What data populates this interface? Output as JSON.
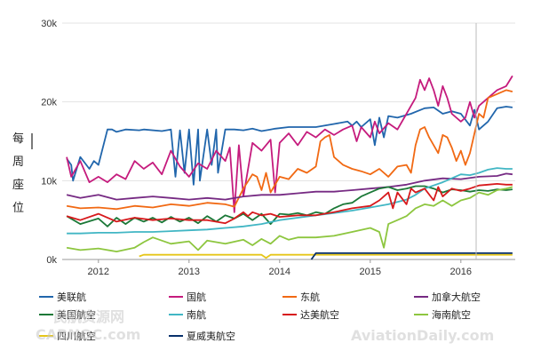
{
  "chart_data": {
    "type": "line",
    "ylabel": "每周座位",
    "yticks": [
      "0k",
      "10k",
      "20k",
      "30k"
    ],
    "ylim": [
      0,
      30000
    ],
    "xticks": [
      "2012",
      "2013",
      "2014",
      "2015",
      "2016"
    ],
    "xlim": [
      2011.6,
      2016.6
    ],
    "grid": "horizontal",
    "legend_position": "bottom",
    "series": [
      {
        "name": "美联航",
        "color": "#2166ac",
        "x": [
          2011.65,
          2011.7,
          2011.72,
          2011.8,
          2011.9,
          2011.95,
          2012.0,
          2012.1,
          2012.15,
          2012.2,
          2012.3,
          2012.45,
          2012.5,
          2012.7,
          2012.8,
          2012.85,
          2012.9,
          2012.95,
          2013.0,
          2013.05,
          2013.1,
          2013.12,
          2013.2,
          2013.25,
          2013.3,
          2013.32,
          2013.4,
          2013.5,
          2013.6,
          2013.7,
          2013.8,
          2013.9,
          2013.95,
          2014.1,
          2014.2,
          2014.4,
          2014.6,
          2014.75,
          2014.8,
          2014.85,
          2014.9,
          2015.0,
          2015.05,
          2015.1,
          2015.15,
          2015.2,
          2015.3,
          2015.45,
          2015.6,
          2015.7,
          2015.8,
          2015.9,
          2016.0,
          2016.1,
          2016.15,
          2016.2,
          2016.3,
          2016.4,
          2016.5,
          2016.57
        ],
        "values": [
          12800,
          12000,
          10000,
          13000,
          11500,
          12500,
          12000,
          16500,
          16500,
          16200,
          16500,
          16400,
          16500,
          16300,
          16500,
          10500,
          16400,
          11000,
          16500,
          9500,
          16500,
          10000,
          16500,
          12000,
          16500,
          11000,
          16500,
          16500,
          16400,
          16600,
          16300,
          16500,
          16600,
          16800,
          16800,
          16800,
          17200,
          17500,
          17000,
          17500,
          16800,
          17800,
          14500,
          18000,
          15500,
          18200,
          18000,
          18500,
          19200,
          19300,
          18500,
          18800,
          18500,
          17000,
          19000,
          16500,
          17500,
          19200,
          19400,
          19300
        ]
      },
      {
        "name": "国航",
        "color": "#c51b7d",
        "x": [
          2011.65,
          2011.7,
          2011.8,
          2011.9,
          2012.0,
          2012.1,
          2012.2,
          2012.3,
          2012.4,
          2012.5,
          2012.6,
          2012.7,
          2012.8,
          2012.9,
          2013.0,
          2013.1,
          2013.2,
          2013.3,
          2013.4,
          2013.45,
          2013.5,
          2013.55,
          2013.6,
          2013.7,
          2013.8,
          2013.9,
          2013.95,
          2014.0,
          2014.1,
          2014.2,
          2014.3,
          2014.4,
          2014.5,
          2014.6,
          2014.7,
          2014.8,
          2014.85,
          2014.9,
          2015.0,
          2015.05,
          2015.1,
          2015.2,
          2015.3,
          2015.4,
          2015.5,
          2015.55,
          2015.6,
          2015.65,
          2015.7,
          2015.75,
          2015.8,
          2015.85,
          2015.9,
          2016.0,
          2016.05,
          2016.1,
          2016.15,
          2016.2,
          2016.3,
          2016.4,
          2016.5,
          2016.57
        ],
        "values": [
          13000,
          10500,
          12500,
          9800,
          10500,
          9800,
          10800,
          10200,
          12500,
          11500,
          12300,
          10800,
          13800,
          11800,
          10500,
          12200,
          11500,
          13800,
          12500,
          14200,
          6000,
          14500,
          8000,
          14800,
          13800,
          15200,
          8500,
          14800,
          16000,
          14500,
          16200,
          15500,
          16500,
          15800,
          16500,
          17000,
          15000,
          16800,
          15500,
          17500,
          16000,
          17300,
          16500,
          18500,
          20500,
          22800,
          21500,
          23000,
          21500,
          19500,
          22000,
          20500,
          18500,
          17500,
          18000,
          20000,
          18000,
          19500,
          20500,
          21500,
          22000,
          23300
        ]
      },
      {
        "name": "东航",
        "color": "#f16913",
        "x": [
          2011.65,
          2011.8,
          2012.0,
          2012.2,
          2012.4,
          2012.6,
          2012.8,
          2013.0,
          2013.2,
          2013.4,
          2013.5,
          2013.6,
          2013.7,
          2013.75,
          2013.8,
          2013.85,
          2013.9,
          2014.0,
          2014.1,
          2014.2,
          2014.3,
          2014.4,
          2014.45,
          2014.5,
          2014.55,
          2014.6,
          2014.7,
          2014.8,
          2014.9,
          2015.0,
          2015.1,
          2015.2,
          2015.3,
          2015.4,
          2015.45,
          2015.5,
          2015.55,
          2015.6,
          2015.65,
          2015.7,
          2015.75,
          2015.8,
          2015.85,
          2015.9,
          2015.95,
          2016.0,
          2016.05,
          2016.1,
          2016.2,
          2016.25,
          2016.3,
          2016.4,
          2016.5,
          2016.57
        ],
        "values": [
          6800,
          6500,
          6600,
          6400,
          6800,
          6600,
          7000,
          6800,
          7200,
          7000,
          6700,
          9000,
          10800,
          10500,
          8800,
          11000,
          8500,
          10500,
          10200,
          11500,
          11000,
          11800,
          15000,
          15500,
          15800,
          13000,
          12000,
          11500,
          11200,
          10800,
          11500,
          10500,
          11800,
          12000,
          11000,
          14500,
          16500,
          16800,
          15500,
          14500,
          13500,
          15800,
          15500,
          14200,
          12500,
          13800,
          12000,
          13500,
          18500,
          18000,
          20500,
          21000,
          21500,
          21300
        ]
      },
      {
        "name": "加拿大航空",
        "color": "#762a83",
        "x": [
          2011.65,
          2011.8,
          2012.0,
          2012.2,
          2012.4,
          2012.6,
          2012.8,
          2013.0,
          2013.2,
          2013.4,
          2013.6,
          2013.8,
          2014.0,
          2014.2,
          2014.4,
          2014.6,
          2014.8,
          2015.0,
          2015.2,
          2015.4,
          2015.6,
          2015.8,
          2016.0,
          2016.2,
          2016.4,
          2016.5,
          2016.57
        ],
        "values": [
          8200,
          7800,
          8200,
          7600,
          7800,
          8000,
          7800,
          7600,
          7800,
          7600,
          8000,
          8200,
          8200,
          8400,
          8600,
          8600,
          8800,
          9000,
          9200,
          9500,
          10000,
          10300,
          10200,
          10500,
          10600,
          10900,
          10800
        ]
      },
      {
        "name": "美国航空",
        "color": "#1b7837",
        "x": [
          2011.65,
          2011.8,
          2012.0,
          2012.1,
          2012.2,
          2012.3,
          2012.4,
          2012.5,
          2012.6,
          2012.7,
          2012.8,
          2012.9,
          2013.0,
          2013.1,
          2013.2,
          2013.3,
          2013.4,
          2013.5,
          2013.6,
          2013.7,
          2013.8,
          2013.9,
          2014.0,
          2014.1,
          2014.2,
          2014.3,
          2014.4,
          2014.5,
          2014.6,
          2014.7,
          2014.8,
          2014.9,
          2015.0,
          2015.1,
          2015.2,
          2015.3,
          2015.4,
          2015.5,
          2015.6,
          2015.7,
          2015.8,
          2015.9,
          2016.0,
          2016.1,
          2016.2,
          2016.3,
          2016.4,
          2016.5,
          2016.57
        ],
        "values": [
          5500,
          4500,
          5200,
          4200,
          5300,
          4500,
          5300,
          4800,
          5300,
          4700,
          5400,
          4800,
          5300,
          4600,
          5500,
          4800,
          5600,
          5200,
          5800,
          5000,
          5800,
          4500,
          5800,
          5700,
          5900,
          5600,
          6000,
          5800,
          6500,
          7000,
          7200,
          8000,
          8500,
          9000,
          9200,
          8800,
          9000,
          9300,
          9300,
          9000,
          8500,
          8900,
          8800,
          8600,
          8800,
          8700,
          8900,
          8800,
          8900
        ]
      },
      {
        "name": "南航",
        "color": "#41b6c4",
        "x": [
          2011.65,
          2011.8,
          2012.0,
          2012.2,
          2012.4,
          2012.6,
          2012.8,
          2013.0,
          2013.2,
          2013.4,
          2013.6,
          2013.8,
          2014.0,
          2014.2,
          2014.4,
          2014.6,
          2014.8,
          2015.0,
          2015.2,
          2015.4,
          2015.5,
          2015.6,
          2015.8,
          2016.0,
          2016.1,
          2016.2,
          2016.3,
          2016.4,
          2016.5,
          2016.57
        ],
        "values": [
          3300,
          3300,
          3400,
          3400,
          3500,
          3500,
          3600,
          3700,
          3800,
          4000,
          4200,
          4500,
          5000,
          5300,
          5600,
          5900,
          6200,
          6600,
          7000,
          7600,
          8200,
          9000,
          9800,
          10800,
          10700,
          11000,
          11400,
          11600,
          11500,
          11500
        ]
      },
      {
        "name": "达美航空",
        "color": "#d7191c",
        "x": [
          2011.65,
          2011.8,
          2012.0,
          2012.2,
          2012.4,
          2012.6,
          2012.8,
          2013.0,
          2013.2,
          2013.4,
          2013.5,
          2013.6,
          2013.65,
          2013.7,
          2013.8,
          2013.9,
          2014.0,
          2014.2,
          2014.4,
          2014.6,
          2014.8,
          2015.0,
          2015.1,
          2015.2,
          2015.25,
          2015.3,
          2015.4,
          2015.45,
          2015.5,
          2015.6,
          2015.7,
          2015.75,
          2015.8,
          2015.9,
          2016.0,
          2016.1,
          2016.2,
          2016.3,
          2016.4,
          2016.5,
          2016.57
        ],
        "values": [
          5500,
          5000,
          5800,
          4800,
          5300,
          5000,
          5200,
          5000,
          5000,
          4600,
          5200,
          6000,
          5500,
          6000,
          5600,
          5800,
          5400,
          5600,
          5600,
          6000,
          6500,
          6800,
          7500,
          8500,
          6500,
          8500,
          7000,
          9000,
          8500,
          9000,
          7500,
          9200,
          8000,
          9000,
          8700,
          9000,
          9400,
          9500,
          9600,
          9500,
          9500
        ]
      },
      {
        "name": "海南航空",
        "color": "#8dc63f",
        "x": [
          2011.65,
          2011.8,
          2012.0,
          2012.2,
          2012.4,
          2012.5,
          2012.6,
          2012.8,
          2013.0,
          2013.1,
          2013.2,
          2013.4,
          2013.6,
          2013.7,
          2013.8,
          2013.9,
          2014.0,
          2014.1,
          2014.2,
          2014.4,
          2014.6,
          2014.8,
          2015.0,
          2015.1,
          2015.15,
          2015.2,
          2015.3,
          2015.4,
          2015.5,
          2015.6,
          2015.7,
          2015.8,
          2015.9,
          2016.0,
          2016.1,
          2016.2,
          2016.3,
          2016.4,
          2016.5,
          2016.57
        ],
        "values": [
          1500,
          1200,
          1400,
          1000,
          1500,
          2200,
          2800,
          2000,
          2300,
          1200,
          2400,
          2000,
          2500,
          1800,
          2600,
          2000,
          3000,
          2500,
          2800,
          2800,
          3000,
          3500,
          4000,
          3500,
          1500,
          4500,
          5000,
          5500,
          6500,
          7000,
          6800,
          7500,
          6800,
          7500,
          7800,
          8500,
          8200,
          8800,
          9000,
          9200
        ]
      },
      {
        "name": "四川航空",
        "color": "#e6c619",
        "x": [
          2012.45,
          2012.5,
          2012.6,
          2012.8,
          2013.0,
          2013.2,
          2013.4,
          2013.6,
          2013.8,
          2013.85,
          2013.9,
          2014.0,
          2014.2,
          2014.4,
          2014.6,
          2014.8,
          2015.0,
          2015.2,
          2015.4,
          2015.6,
          2015.8,
          2016.0,
          2016.2,
          2016.4,
          2016.57
        ],
        "values": [
          400,
          600,
          600,
          600,
          600,
          600,
          600,
          600,
          600,
          200,
          600,
          600,
          600,
          600,
          600,
          600,
          600,
          600,
          600,
          600,
          600,
          600,
          600,
          600,
          600
        ]
      },
      {
        "name": "夏威夷航空",
        "color": "#08306b",
        "x": [
          2014.35,
          2014.4,
          2014.6,
          2014.8,
          2015.0,
          2015.2,
          2015.4,
          2015.6,
          2015.8,
          2016.0,
          2016.2,
          2016.4,
          2016.57
        ],
        "values": [
          0,
          800,
          800,
          800,
          800,
          800,
          800,
          800,
          800,
          800,
          800,
          800,
          800
        ]
      }
    ],
    "annotations": [
      "民航资源网",
      "CARNOC.com",
      "AviationDaily.com"
    ]
  }
}
